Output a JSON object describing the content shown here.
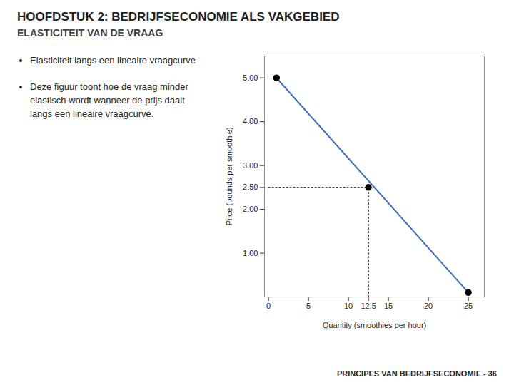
{
  "chart_data": {
    "type": "line",
    "title": "HOOFDSTUK 2: BEDRIJFSECONOMIE ALS VAKGEBIED",
    "subtitle": "ELASTICITEIT VAN DE VRAAG",
    "annotations": [
      [
        "Elasticiteit langs een lineaire vraagcurve"
      ],
      [
        "Deze figuur toont hoe de vraag minder",
        "elastisch wordt wanneer de prijs daalt",
        "langs een lineaire vraagcurve."
      ]
    ],
    "caption": "PRINCIPES VAN BEDRIJFSECONOMIE - 36",
    "xlabel": "Quantity (smoothies per hour)",
    "ylabel": "Price (pounds per smoothie)",
    "series": [
      {
        "type": "line",
        "color": "#3F6FB5",
        "line_style": "solid",
        "x": [
          1,
          25
        ],
        "values": [
          5.0,
          0.1
        ]
      },
      {
        "type": "line",
        "color": "black",
        "line_style": "dotted",
        "x": [
          12.5,
          12.5
        ],
        "values": [
          0,
          2.5
        ]
      },
      {
        "type": "line",
        "color": "black",
        "line_style": "dotted",
        "x": [
          0,
          12.5
        ],
        "values": [
          2.5,
          2.5
        ]
      },
      {
        "type": "scatter",
        "color": "black",
        "marker": "circle",
        "x": [
          1,
          12.5,
          25
        ],
        "values": [
          5.0,
          2.5,
          0.1
        ]
      }
    ],
    "xlim": [
      -0.5,
      27
    ],
    "ylim": [
      0,
      5.5
    ],
    "xticks": [
      0,
      5,
      10,
      12.5,
      15,
      20,
      25
    ],
    "yticks": [
      {
        "value": 1.0,
        "label": "1.00"
      },
      {
        "value": 2.0,
        "label": "2.00"
      },
      {
        "value": 2.5,
        "label": "2.50"
      },
      {
        "value": 3.0,
        "label": "3.00"
      },
      {
        "value": 4.0,
        "label": "4.00"
      },
      {
        "value": 5.0,
        "label": "5.00"
      }
    ],
    "grid": false
  }
}
